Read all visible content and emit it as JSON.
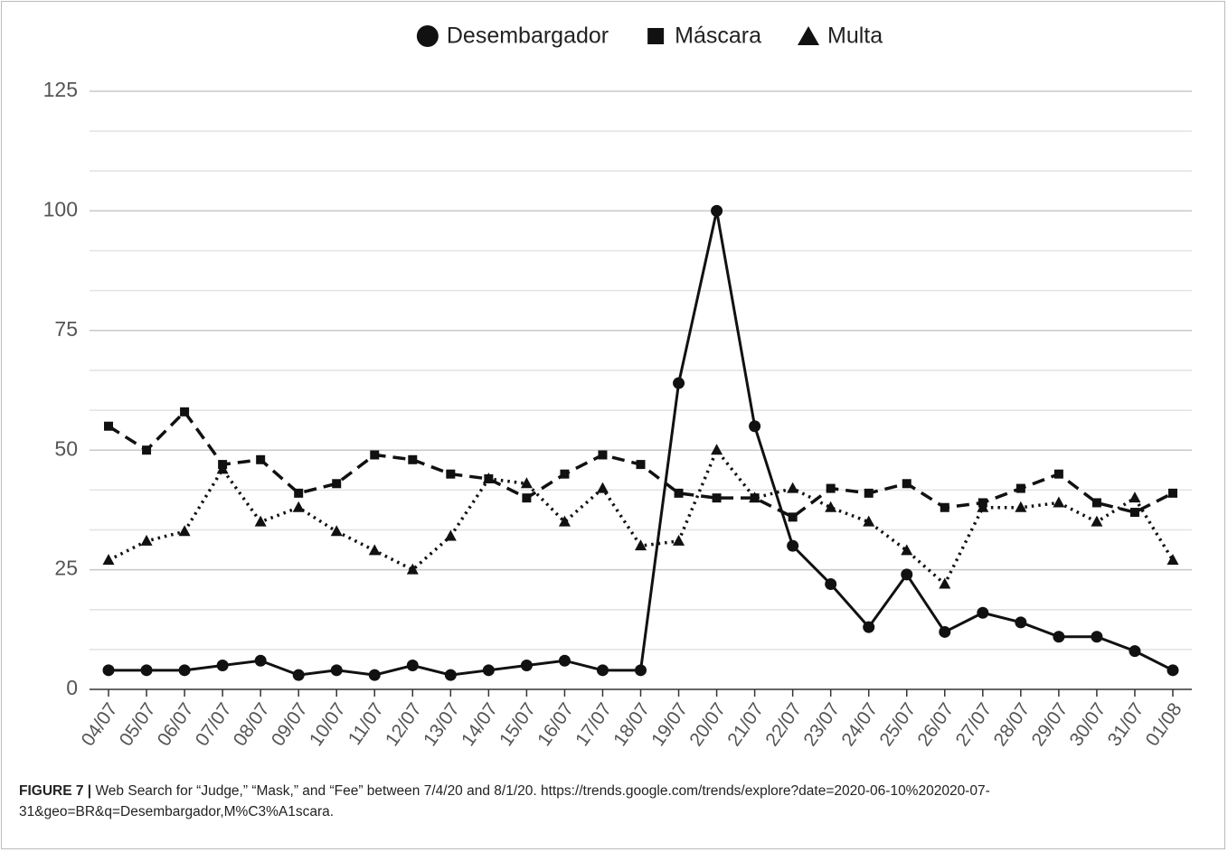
{
  "chart_data": {
    "type": "line",
    "categories": [
      "04/07",
      "05/07",
      "06/07",
      "07/07",
      "08/07",
      "09/07",
      "10/07",
      "11/07",
      "12/07",
      "13/07",
      "14/07",
      "15/07",
      "16/07",
      "17/07",
      "18/07",
      "19/07",
      "20/07",
      "21/07",
      "22/07",
      "23/07",
      "24/07",
      "25/07",
      "26/07",
      "27/07",
      "28/07",
      "29/07",
      "30/07",
      "31/07",
      "01/08"
    ],
    "series": [
      {
        "name": "Desembargador",
        "color": "#111111",
        "line_style": "solid",
        "marker": "circle",
        "values": [
          4,
          4,
          4,
          5,
          6,
          3,
          4,
          3,
          5,
          3,
          4,
          5,
          6,
          4,
          4,
          64,
          100,
          55,
          30,
          22,
          13,
          24,
          12,
          16,
          14,
          11,
          11,
          8,
          4
        ]
      },
      {
        "name": "Máscara",
        "color": "#111111",
        "line_style": "dashed",
        "marker": "square",
        "values": [
          55,
          50,
          58,
          47,
          48,
          41,
          43,
          49,
          48,
          45,
          44,
          40,
          45,
          49,
          47,
          41,
          40,
          40,
          36,
          42,
          41,
          43,
          38,
          39,
          42,
          45,
          39,
          37,
          41
        ]
      },
      {
        "name": "Multa",
        "color": "#111111",
        "line_style": "dotted",
        "marker": "triangle",
        "values": [
          27,
          31,
          33,
          46,
          35,
          38,
          33,
          29,
          25,
          32,
          44,
          43,
          35,
          42,
          30,
          31,
          50,
          40,
          42,
          38,
          35,
          29,
          22,
          38,
          38,
          39,
          35,
          40,
          27
        ]
      }
    ],
    "ylim": [
      0,
      125
    ],
    "yticks": [
      0,
      25,
      50,
      75,
      100,
      125
    ],
    "grid": true,
    "legend": "top",
    "caption_label": "FIGURE 7 |",
    "caption": "Web Search for “Judge,” “Mask,” and “Fee” between 7/4/20 and 8/1/20. https://trends.google.com/trends/explore?date=2020-06-10%202020-07-31&geo=BR&q=Desembargador,M%C3%A1scara."
  }
}
